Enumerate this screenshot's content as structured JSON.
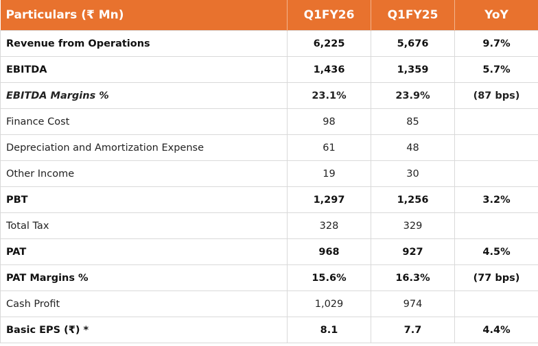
{
  "table": {
    "header": [
      "Particulars (₹ Mn)",
      "Q1FY26",
      "Q1FY25",
      "YoY"
    ],
    "rows": [
      [
        "Revenue from Operations",
        "6,225",
        "5,676",
        "9.7%"
      ],
      [
        "EBITDA",
        "1,436",
        "1,359",
        "5.7%"
      ],
      [
        "EBITDA Margins %",
        "23.1%",
        "23.9%",
        "(87 bps)"
      ],
      [
        "Finance Cost",
        "98",
        "85"
      ],
      [
        "Depreciation and Amortization Expense",
        "61",
        "48"
      ],
      [
        "Other Income",
        "19",
        "30"
      ],
      [
        "PBT",
        "1,297",
        "1,256",
        "3.2%"
      ],
      [
        "Total Tax",
        "328",
        "329"
      ],
      [
        "PAT",
        "968",
        "927",
        "4.5%"
      ],
      [
        "PAT Margins %",
        "15.6%",
        "16.3%",
        "(77 bps)"
      ],
      [
        "Cash Profit",
        "1,029",
        "974"
      ],
      [
        "Basic EPS (₹) *",
        "8.1",
        "7.7",
        "4.4%"
      ]
    ]
  }
}
